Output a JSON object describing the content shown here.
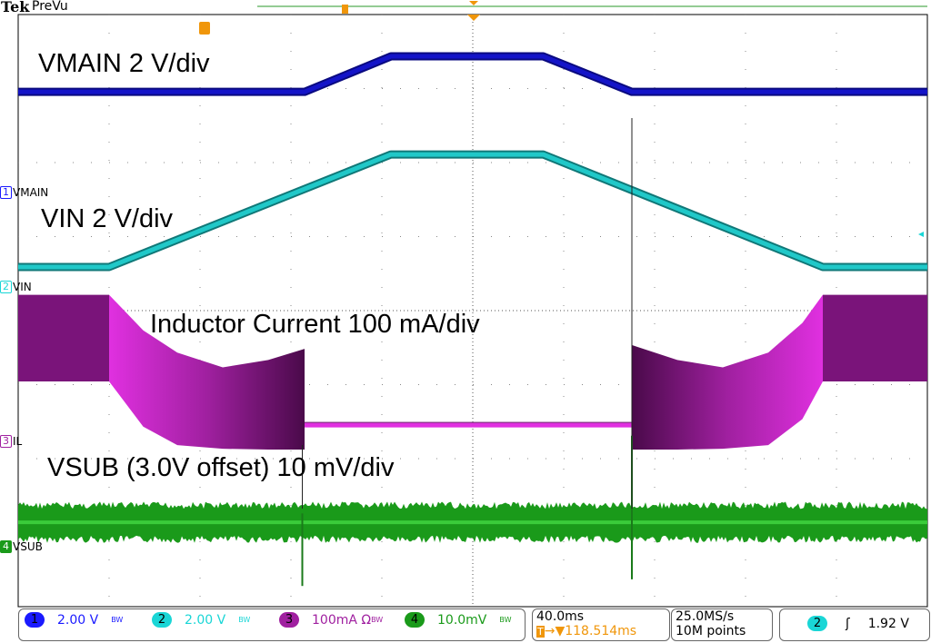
{
  "header": {
    "brand": "Tek",
    "mode": "PreVu"
  },
  "annotations": {
    "vmain": "VMAIN 2 V/div",
    "vin": "VIN 2 V/div",
    "il": "Inductor Current 100 mA/div",
    "vsub": "VSUB (3.0V offset) 10 mV/div"
  },
  "channel_markers": [
    {
      "num": "1",
      "name": "VMAIN",
      "color": "#1a1aff"
    },
    {
      "num": "2",
      "name": "VIN",
      "color": "#1ad6d6"
    },
    {
      "num": "3",
      "name": "IL",
      "color": "#a020a0"
    },
    {
      "num": "4",
      "name": "VSUB",
      "color": "#1a9a1a"
    }
  ],
  "status_bar": {
    "channels": [
      {
        "num": "1",
        "scale": "2.00 V",
        "bw": "BW",
        "color": "#1a1aff",
        "dot": "#1a1aff"
      },
      {
        "num": "2",
        "scale": "2.00 V",
        "bw": "BW",
        "color": "#1ad6d6",
        "dot": "#1ad6d6"
      },
      {
        "num": "3",
        "scale": "100mA Ω",
        "bw": "BW",
        "color": "#a020a0",
        "dot": "#a020a0"
      },
      {
        "num": "4",
        "scale": "10.0mV",
        "bw": "BW",
        "color": "#1a9a1a",
        "dot": "#1a9a1a"
      }
    ],
    "timebase": "40.0ms",
    "trigger_position": "▼118.514ms",
    "sample_rate": "25.0MS/s",
    "record_length": "10M points",
    "trigger_channel": "2",
    "trigger_slope": "ʃ",
    "trigger_level": "1.92 V"
  },
  "chart_data": {
    "type": "line",
    "x_unit": "ms",
    "xlim": [
      0,
      400
    ],
    "x_per_div": 40,
    "grid": true,
    "series": [
      {
        "name": "VMAIN",
        "unit": "V",
        "per_div": 2,
        "color": "#1414c8",
        "t": [
          0,
          126,
          164,
          231,
          270,
          400
        ],
        "v": [
          2.72,
          2.72,
          3.68,
          3.68,
          2.72,
          2.72
        ]
      },
      {
        "name": "VIN",
        "unit": "V",
        "per_div": 2,
        "color": "#20c8c8",
        "t": [
          0,
          40,
          164,
          231,
          354,
          400
        ],
        "v": [
          0.54,
          0.54,
          3.58,
          3.58,
          0.54,
          0.54
        ]
      },
      {
        "name": "IL",
        "unit": "mA",
        "per_div": 100,
        "color": "#c020c0",
        "t": [
          0,
          40,
          55,
          70,
          90,
          110,
          126,
          126.1,
          270,
          270.1,
          290,
          310,
          330,
          345,
          354,
          400
        ],
        "max": [
          198,
          198,
          150,
          120,
          100,
          110,
          125,
          22,
          22,
          130,
          110,
          100,
          120,
          160,
          198,
          198
        ],
        "min": [
          81,
          81,
          20,
          -5,
          -10,
          -11,
          -11,
          22,
          22,
          -11,
          -11,
          -10,
          -5,
          30,
          81,
          81
        ]
      },
      {
        "name": "VSUB",
        "unit": "mV",
        "per_div": 10,
        "color": "#1a9a1a",
        "center": 3.3,
        "band": 2.3,
        "spikes": [
          {
            "t": 125,
            "min": -5.3,
            "max": 4.5
          },
          {
            "t": 270,
            "min": -4.4,
            "max": 15
          }
        ]
      }
    ]
  }
}
